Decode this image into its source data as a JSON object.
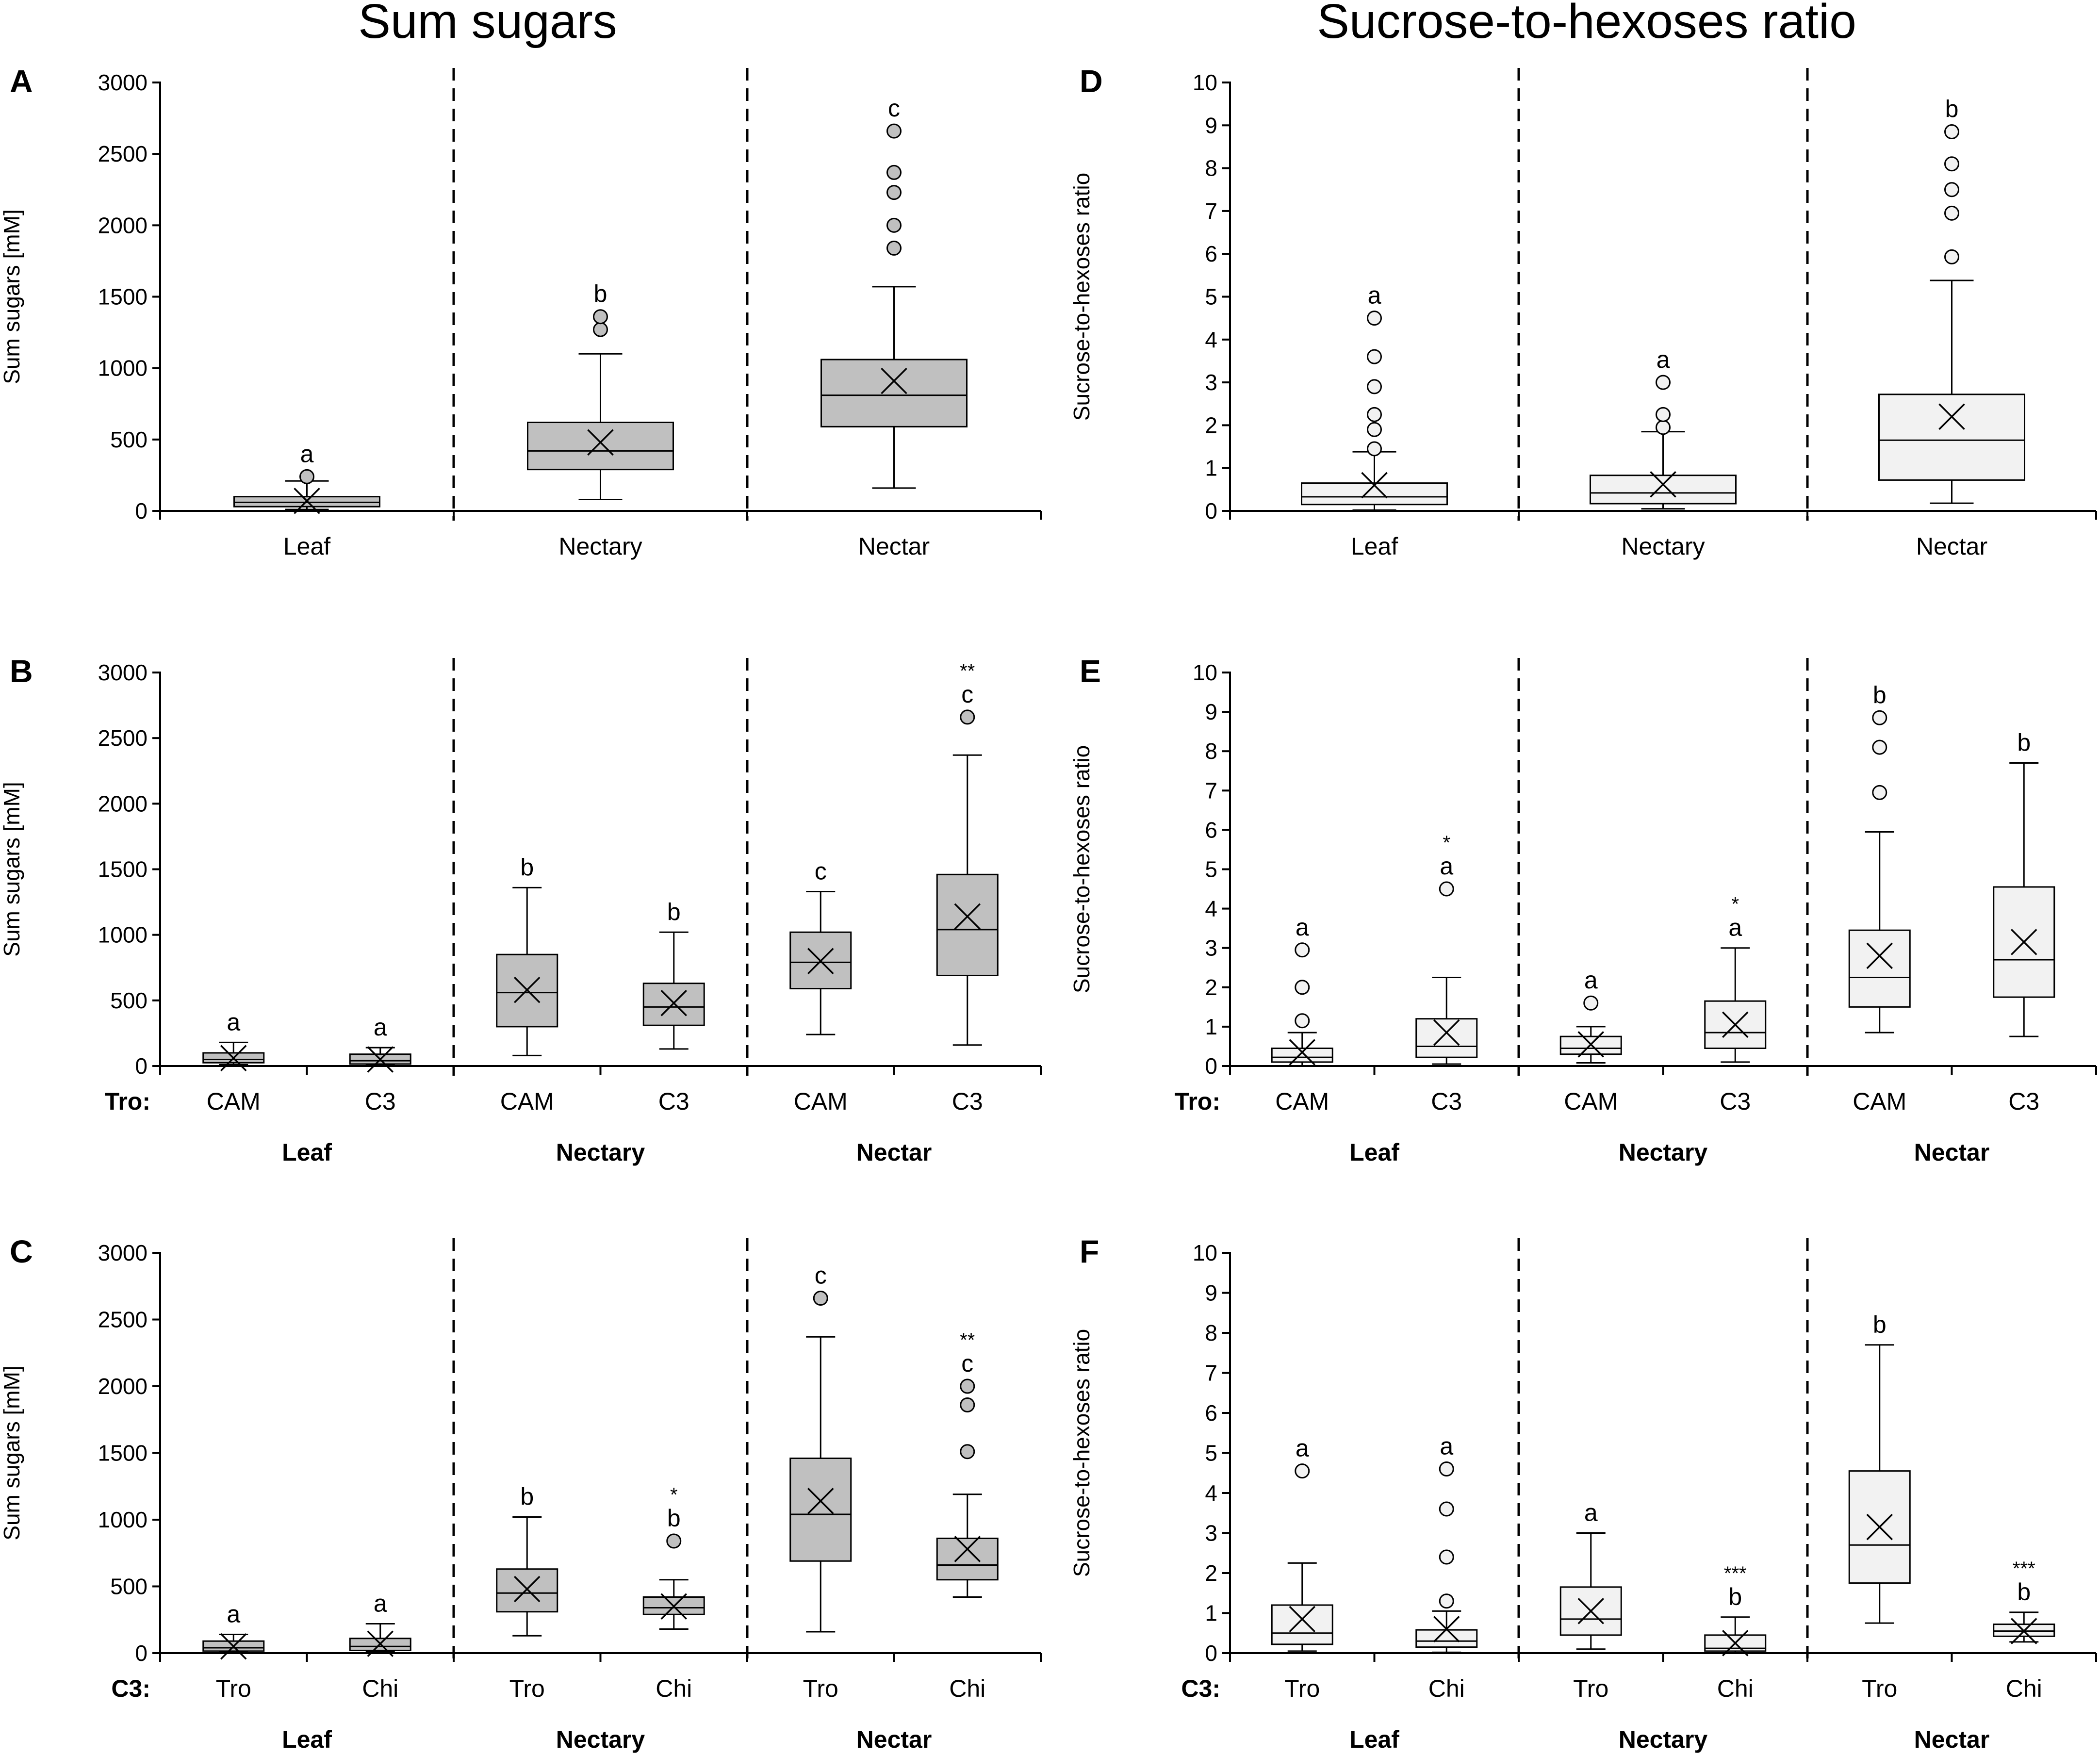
{
  "column_titles": {
    "left": "Sum sugars",
    "right": "Sucrose-to-hexoses ratio"
  },
  "colors": {
    "sum_box_fill": "#c0c0c0",
    "ratio_box_fill": "#f2f2f2",
    "ink": "#000000"
  },
  "chart_data": [
    {
      "id": "A",
      "type": "box",
      "panel_label": "A",
      "title": "Sum sugars",
      "ylabel": "Sum sugars [mM]",
      "ylim": [
        0,
        3000
      ],
      "yticks": [
        "0",
        "500",
        "1000",
        "1500",
        "2000",
        "2500",
        "3000"
      ],
      "groups": [
        "Leaf",
        "Nectary",
        "Nectar"
      ],
      "group_labels_bold": false,
      "categories": [
        "Leaf",
        "Nectary",
        "Nectar"
      ],
      "boxes": [
        {
          "category": "Leaf",
          "min": 10,
          "q1": 30,
          "median": 60,
          "q3": 100,
          "max": 210,
          "mean": 70,
          "outliers": [
            240
          ],
          "sig": "a",
          "stars": ""
        },
        {
          "category": "Nectary",
          "min": 80,
          "q1": 290,
          "median": 420,
          "q3": 620,
          "max": 1100,
          "mean": 480,
          "outliers": [
            1270,
            1360
          ],
          "sig": "b",
          "stars": ""
        },
        {
          "category": "Nectar",
          "min": 160,
          "q1": 590,
          "median": 810,
          "q3": 1060,
          "max": 1570,
          "mean": 910,
          "outliers": [
            1840,
            2000,
            2230,
            2370,
            2660
          ],
          "sig": "c",
          "stars": ""
        }
      ]
    },
    {
      "id": "B",
      "type": "box",
      "panel_label": "B",
      "ylabel": "Sum sugars [mM]",
      "ylim": [
        0,
        3000
      ],
      "yticks": [
        "0",
        "500",
        "1000",
        "1500",
        "2000",
        "2500",
        "3000"
      ],
      "groups": [
        "Leaf",
        "Nectary",
        "Nectar"
      ],
      "group_labels_bold": true,
      "prefix": "Tro:",
      "categories": [
        "CAM",
        "C3",
        "CAM",
        "C3",
        "CAM",
        "C3"
      ],
      "boxes": [
        {
          "category": "CAM",
          "min": 10,
          "q1": 25,
          "median": 50,
          "q3": 100,
          "max": 180,
          "mean": 60,
          "outliers": [],
          "sig": "a",
          "stars": ""
        },
        {
          "category": "C3",
          "min": 5,
          "q1": 15,
          "median": 40,
          "q3": 90,
          "max": 140,
          "mean": 50,
          "outliers": [],
          "sig": "a",
          "stars": ""
        },
        {
          "category": "CAM",
          "min": 80,
          "q1": 300,
          "median": 560,
          "q3": 850,
          "max": 1360,
          "mean": 580,
          "outliers": [],
          "sig": "b",
          "stars": ""
        },
        {
          "category": "C3",
          "min": 130,
          "q1": 310,
          "median": 450,
          "q3": 630,
          "max": 1020,
          "mean": 480,
          "outliers": [],
          "sig": "b",
          "stars": ""
        },
        {
          "category": "CAM",
          "min": 240,
          "q1": 590,
          "median": 790,
          "q3": 1020,
          "max": 1330,
          "mean": 800,
          "outliers": [],
          "sig": "c",
          "stars": ""
        },
        {
          "category": "C3",
          "min": 160,
          "q1": 690,
          "median": 1040,
          "q3": 1460,
          "max": 2370,
          "mean": 1140,
          "outliers": [
            2660
          ],
          "sig": "c",
          "stars": "**"
        }
      ]
    },
    {
      "id": "C",
      "type": "box",
      "panel_label": "C",
      "ylabel": "Sum sugars [mM]",
      "ylim": [
        0,
        3000
      ],
      "yticks": [
        "0",
        "500",
        "1000",
        "1500",
        "2000",
        "2500",
        "3000"
      ],
      "groups": [
        "Leaf",
        "Nectary",
        "Nectar"
      ],
      "group_labels_bold": true,
      "prefix": "C3:",
      "categories": [
        "Tro",
        "Chi",
        "Tro",
        "Chi",
        "Tro",
        "Chi"
      ],
      "boxes": [
        {
          "category": "Tro",
          "min": 5,
          "q1": 15,
          "median": 40,
          "q3": 90,
          "max": 140,
          "mean": 50,
          "outliers": [],
          "sig": "a",
          "stars": ""
        },
        {
          "category": "Chi",
          "min": 10,
          "q1": 20,
          "median": 50,
          "q3": 110,
          "max": 220,
          "mean": 70,
          "outliers": [],
          "sig": "a",
          "stars": ""
        },
        {
          "category": "Tro",
          "min": 130,
          "q1": 310,
          "median": 450,
          "q3": 630,
          "max": 1020,
          "mean": 480,
          "outliers": [],
          "sig": "b",
          "stars": ""
        },
        {
          "category": "Chi",
          "min": 180,
          "q1": 290,
          "median": 340,
          "q3": 420,
          "max": 550,
          "mean": 350,
          "outliers": [
            840
          ],
          "sig": "b",
          "stars": "*"
        },
        {
          "category": "Tro",
          "min": 160,
          "q1": 690,
          "median": 1040,
          "q3": 1460,
          "max": 2370,
          "mean": 1140,
          "outliers": [
            2660
          ],
          "sig": "c",
          "stars": ""
        },
        {
          "category": "Chi",
          "min": 420,
          "q1": 550,
          "median": 660,
          "q3": 860,
          "max": 1190,
          "mean": 780,
          "outliers": [
            1510,
            1860,
            2000
          ],
          "sig": "c",
          "stars": "**"
        }
      ]
    },
    {
      "id": "D",
      "type": "box",
      "panel_label": "D",
      "title": "Sucrose-to-hexoses ratio",
      "ylabel": "Sucrose-to-hexoses ratio",
      "ylim": [
        0,
        10
      ],
      "yticks": [
        "0",
        "1",
        "2",
        "3",
        "4",
        "5",
        "6",
        "7",
        "8",
        "9",
        "10"
      ],
      "groups": [
        "Leaf",
        "Nectary",
        "Nectar"
      ],
      "group_labels_bold": false,
      "categories": [
        "Leaf",
        "Nectary",
        "Nectar"
      ],
      "boxes": [
        {
          "category": "Leaf",
          "min": 0.02,
          "q1": 0.15,
          "median": 0.33,
          "q3": 0.65,
          "max": 1.38,
          "mean": 0.6,
          "outliers": [
            1.45,
            1.9,
            2.25,
            2.9,
            3.6,
            4.5
          ],
          "sig": "a",
          "stars": ""
        },
        {
          "category": "Nectary",
          "min": 0.05,
          "q1": 0.17,
          "median": 0.42,
          "q3": 0.83,
          "max": 1.85,
          "mean": 0.62,
          "outliers": [
            1.95,
            2.25,
            3.0
          ],
          "sig": "a",
          "stars": ""
        },
        {
          "category": "Nectar",
          "min": 0.18,
          "q1": 0.72,
          "median": 1.65,
          "q3": 2.72,
          "max": 5.38,
          "mean": 2.2,
          "outliers": [
            5.93,
            6.95,
            7.5,
            8.1,
            8.85
          ],
          "sig": "b",
          "stars": ""
        }
      ]
    },
    {
      "id": "E",
      "type": "box",
      "panel_label": "E",
      "ylabel": "Sucrose-to-hexoses ratio",
      "ylim": [
        0,
        10
      ],
      "yticks": [
        "0",
        "1",
        "2",
        "3",
        "4",
        "5",
        "6",
        "7",
        "8",
        "9",
        "10"
      ],
      "groups": [
        "Leaf",
        "Nectary",
        "Nectar"
      ],
      "group_labels_bold": true,
      "prefix": "Tro:",
      "categories": [
        "CAM",
        "C3",
        "CAM",
        "C3",
        "CAM",
        "C3"
      ],
      "boxes": [
        {
          "category": "CAM",
          "min": 0.0,
          "q1": 0.1,
          "median": 0.22,
          "q3": 0.45,
          "max": 0.85,
          "mean": 0.35,
          "outliers": [
            1.15,
            2.0,
            2.95
          ],
          "sig": "a",
          "stars": ""
        },
        {
          "category": "C3",
          "min": 0.05,
          "q1": 0.22,
          "median": 0.5,
          "q3": 1.2,
          "max": 2.25,
          "mean": 0.85,
          "outliers": [
            4.5
          ],
          "sig": "a",
          "stars": "*"
        },
        {
          "category": "CAM",
          "min": 0.08,
          "q1": 0.3,
          "median": 0.45,
          "q3": 0.75,
          "max": 1.0,
          "mean": 0.55,
          "outliers": [
            1.6
          ],
          "sig": "a",
          "stars": ""
        },
        {
          "category": "C3",
          "min": 0.1,
          "q1": 0.45,
          "median": 0.85,
          "q3": 1.65,
          "max": 3.0,
          "mean": 1.05,
          "outliers": [],
          "sig": "a",
          "stars": "*"
        },
        {
          "category": "CAM",
          "min": 0.85,
          "q1": 1.5,
          "median": 2.25,
          "q3": 3.45,
          "max": 5.95,
          "mean": 2.8,
          "outliers": [
            6.95,
            8.1,
            8.85
          ],
          "sig": "b",
          "stars": ""
        },
        {
          "category": "C3",
          "min": 0.75,
          "q1": 1.75,
          "median": 2.7,
          "q3": 4.55,
          "max": 7.7,
          "mean": 3.15,
          "outliers": [],
          "sig": "b",
          "stars": ""
        }
      ]
    },
    {
      "id": "F",
      "type": "box",
      "panel_label": "F",
      "ylabel": "Sucrose-to-hexoses ratio",
      "ylim": [
        0,
        10
      ],
      "yticks": [
        "0",
        "1",
        "2",
        "3",
        "4",
        "5",
        "6",
        "7",
        "8",
        "9",
        "10"
      ],
      "groups": [
        "Leaf",
        "Nectary",
        "Nectar"
      ],
      "group_labels_bold": true,
      "prefix": "C3:",
      "categories": [
        "Tro",
        "Chi",
        "Tro",
        "Chi",
        "Tro",
        "Chi"
      ],
      "boxes": [
        {
          "category": "Tro",
          "min": 0.05,
          "q1": 0.22,
          "median": 0.5,
          "q3": 1.2,
          "max": 2.25,
          "mean": 0.85,
          "outliers": [
            4.55
          ],
          "sig": "a",
          "stars": ""
        },
        {
          "category": "Chi",
          "min": 0.02,
          "q1": 0.15,
          "median": 0.3,
          "q3": 0.58,
          "max": 1.05,
          "mean": 0.6,
          "outliers": [
            1.3,
            2.4,
            3.6,
            4.6
          ],
          "sig": "a",
          "stars": ""
        },
        {
          "category": "Tro",
          "min": 0.1,
          "q1": 0.45,
          "median": 0.85,
          "q3": 1.65,
          "max": 3.0,
          "mean": 1.05,
          "outliers": [],
          "sig": "a",
          "stars": ""
        },
        {
          "category": "Chi",
          "min": 0.0,
          "q1": 0.05,
          "median": 0.12,
          "q3": 0.45,
          "max": 0.9,
          "mean": 0.25,
          "outliers": [],
          "sig": "b",
          "stars": "***"
        },
        {
          "category": "Tro",
          "min": 0.75,
          "q1": 1.75,
          "median": 2.7,
          "q3": 4.55,
          "max": 7.7,
          "mean": 3.15,
          "outliers": [],
          "sig": "b",
          "stars": ""
        },
        {
          "category": "Chi",
          "min": 0.28,
          "q1": 0.42,
          "median": 0.55,
          "q3": 0.72,
          "max": 1.02,
          "mean": 0.55,
          "outliers": [],
          "sig": "b",
          "stars": "***"
        }
      ]
    }
  ]
}
